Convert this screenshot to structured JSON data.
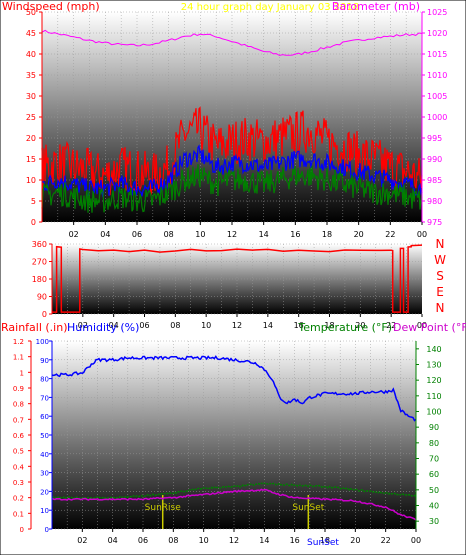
{
  "chart_data": [
    {
      "type": "line",
      "title": "24 hour graph day   January 03 2018",
      "left_axis_label": "Windspeed (mph)",
      "right_axis_label": "Barometer (mb)",
      "left_axis_ticks": [
        "0",
        "5",
        "10",
        "15",
        "20",
        "25",
        "30",
        "35",
        "40",
        "45",
        "50"
      ],
      "right_axis_ticks": [
        "975",
        "980",
        "985",
        "990",
        "995",
        "1000",
        "1005",
        "1010",
        "1015",
        "1020",
        "1025"
      ],
      "ylim_left": [
        0,
        50
      ],
      "ylim_right": [
        975,
        1025
      ],
      "x_ticks": [
        "02",
        "04",
        "06",
        "08",
        "10",
        "12",
        "14",
        "16",
        "18",
        "20",
        "22",
        "00"
      ],
      "xlim_hours": [
        0,
        24
      ],
      "grid": true,
      "series": [
        {
          "axis": "right",
          "color": "#ff00ff",
          "x": [
            0,
            1,
            2,
            3,
            4,
            5,
            6,
            7,
            8,
            9,
            10,
            11,
            12,
            13,
            14,
            15,
            16,
            17,
            18,
            19,
            20,
            21,
            22,
            23,
            24
          ],
          "y": [
            1020.5,
            1019.8,
            1019,
            1018.2,
            1017.6,
            1017.2,
            1017,
            1017.4,
            1018.2,
            1019.2,
            1019.8,
            1019.2,
            1018,
            1016.8,
            1015.6,
            1014.8,
            1014.8,
            1015.6,
            1016.6,
            1017.6,
            1018.3,
            1018.9,
            1019.2,
            1019.6,
            1019.8
          ]
        },
        {
          "color": "#ff0000",
          "x": [
            0,
            1,
            2,
            3,
            4,
            5,
            6,
            7,
            8,
            9,
            10,
            11,
            12,
            13,
            14,
            15,
            16,
            17,
            18,
            19,
            20,
            21,
            22,
            23,
            24
          ],
          "y": [
            13,
            14,
            13,
            12,
            11,
            13,
            12,
            11,
            13,
            21,
            22,
            18,
            19,
            20,
            19,
            20,
            21,
            22,
            19,
            18,
            16,
            15,
            13,
            12,
            10
          ]
        },
        {
          "color": "#0000ff",
          "x": [
            0,
            1,
            2,
            3,
            4,
            5,
            6,
            7,
            8,
            9,
            10,
            11,
            12,
            13,
            14,
            15,
            16,
            17,
            18,
            19,
            20,
            21,
            22,
            23,
            24
          ],
          "y": [
            9,
            10,
            9,
            8,
            8,
            9,
            8,
            8,
            10,
            15,
            16,
            13,
            14,
            14,
            13,
            14,
            15,
            15,
            14,
            13,
            12,
            11,
            10,
            9,
            8
          ]
        },
        {
          "color": "#008000",
          "x": [
            0,
            1,
            2,
            3,
            4,
            5,
            6,
            7,
            8,
            9,
            10,
            11,
            12,
            13,
            14,
            15,
            16,
            17,
            18,
            19,
            20,
            21,
            22,
            23,
            24
          ],
          "y": [
            6,
            7,
            6,
            5,
            5,
            6,
            5,
            5,
            7,
            10,
            11,
            9,
            10,
            10,
            9,
            10,
            11,
            11,
            10,
            9,
            8,
            7,
            7,
            6,
            5
          ]
        }
      ]
    },
    {
      "type": "line",
      "right_axis_label": [
        "N",
        "W",
        "S",
        "E",
        "N"
      ],
      "left_axis_ticks": [
        "0",
        "90",
        "180",
        "270",
        "360"
      ],
      "ylim_left": [
        0,
        360
      ],
      "x_ticks": [
        "02",
        "04",
        "06",
        "08",
        "10",
        "12",
        "14",
        "16",
        "18",
        "20",
        "22",
        "00"
      ],
      "xlim_hours": [
        0,
        24
      ],
      "grid": true,
      "series": [
        {
          "color": "#ff0000",
          "x": [
            0,
            0.3,
            0.3,
            0.6,
            0.6,
            1.8,
            1.8,
            2,
            3,
            4,
            5,
            6,
            7,
            8,
            9,
            10,
            11,
            12,
            13,
            14,
            15,
            16,
            17,
            18,
            19,
            20,
            21,
            22,
            22.1,
            22.1,
            22.6,
            22.6,
            22.8,
            22.8,
            23.1,
            23.1,
            23.3,
            23.3,
            24
          ],
          "y": [
            10,
            10,
            345,
            345,
            10,
            10,
            335,
            330,
            325,
            330,
            320,
            328,
            318,
            325,
            330,
            322,
            328,
            332,
            326,
            330,
            325,
            330,
            326,
            322,
            328,
            325,
            330,
            326,
            326,
            10,
            10,
            340,
            340,
            10,
            10,
            345,
            345,
            355,
            355
          ]
        }
      ]
    },
    {
      "type": "line",
      "left_axis_label": "Rainfall (.in)",
      "left_axis_label_2": "Humidity (%)",
      "right_axis_label": "Temperature (°F)",
      "right_axis_label_2": "Dew Point (°F)",
      "rain_ticks": [
        "0",
        "0.1",
        "0.2",
        "0.3",
        "0.4",
        "0.5",
        "0.6",
        "0.7",
        "0.8",
        "0.9",
        "1",
        "1.1",
        "1.2"
      ],
      "ylim_rain": [
        0,
        1.2
      ],
      "humidity_ticks": [
        "0",
        "10",
        "20",
        "30",
        "40",
        "50",
        "60",
        "70",
        "80",
        "90",
        "100"
      ],
      "ylim_humidity": [
        0,
        100
      ],
      "temp_ticks": [
        "30",
        "40",
        "50",
        "60",
        "70",
        "80",
        "90",
        "100",
        "110",
        "120",
        "130",
        "140"
      ],
      "ylim_temp": [
        25,
        145
      ],
      "x_ticks": [
        "02",
        "04",
        "06",
        "08",
        "10",
        "12",
        "14",
        "16",
        "18",
        "20",
        "22",
        "00"
      ],
      "xlim_hours": [
        0,
        24
      ],
      "grid": true,
      "annotations": [
        {
          "text": "SunRise",
          "hour": 7.3
        },
        {
          "text": "SunSet",
          "hour": 16.9
        }
      ],
      "bottom_text": "SunSet",
      "series": [
        {
          "name": "Humidity",
          "axis": "humidity",
          "color": "#0000ff",
          "x": [
            0,
            1,
            2,
            2.5,
            3,
            4,
            5,
            6,
            7,
            8,
            9,
            10,
            11,
            12,
            13,
            13.5,
            14,
            14.5,
            15,
            15.5,
            16,
            16.5,
            17,
            18,
            19,
            20,
            21,
            22,
            22.5,
            23,
            23.5,
            24
          ],
          "y": [
            82,
            82,
            83,
            87,
            90,
            90,
            91,
            91,
            91,
            91,
            91,
            91,
            91,
            90,
            89,
            88,
            85,
            80,
            70,
            67,
            69,
            67,
            70,
            72,
            72,
            72,
            73,
            73,
            74,
            63,
            60,
            58
          ]
        },
        {
          "name": "Temperature",
          "axis": "temp",
          "color": "#008000",
          "x": [
            0,
            2,
            4,
            6,
            8,
            10,
            12,
            14,
            16,
            18,
            20,
            22,
            24
          ],
          "y": [
            45,
            45,
            45,
            46,
            48,
            51,
            52,
            54,
            53,
            52,
            50,
            48,
            46
          ]
        },
        {
          "name": "Dew Point",
          "axis": "temp",
          "color": "#cc00cc",
          "x": [
            0,
            2,
            4,
            6,
            8,
            10,
            12,
            14,
            15,
            16,
            18,
            20,
            21,
            22,
            23,
            24
          ],
          "y": [
            44,
            44,
            44,
            44,
            45,
            47,
            49,
            50,
            47,
            45,
            44,
            43,
            41,
            39,
            34,
            31
          ]
        }
      ]
    }
  ]
}
